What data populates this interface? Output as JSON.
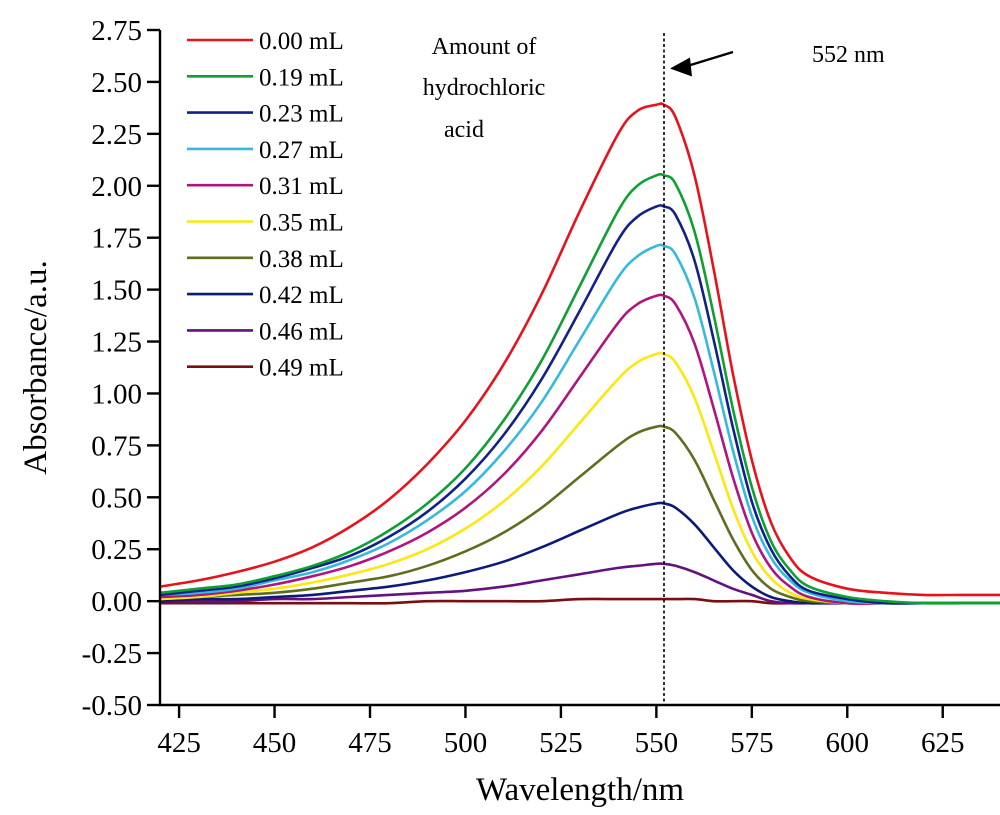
{
  "chart_data": {
    "type": "line",
    "title": "",
    "xlabel": "Wavelength/nm",
    "ylabel": "Absorbance/a.u.",
    "xlim": [
      420,
      640
    ],
    "ylim": [
      -0.5,
      2.75
    ],
    "xticks": [
      425,
      450,
      475,
      500,
      525,
      550,
      575,
      600,
      625
    ],
    "yticks": [
      -0.5,
      -0.25,
      0.0,
      0.25,
      0.5,
      0.75,
      1.0,
      1.25,
      1.5,
      1.75,
      2.0,
      2.25,
      2.5,
      2.75
    ],
    "ytick_labels": [
      "-0.50",
      "-0.25",
      "0.00",
      "0.25",
      "0.50",
      "0.75",
      "1.00",
      "1.25",
      "1.50",
      "1.75",
      "2.00",
      "2.25",
      "2.50",
      "2.75"
    ],
    "xtick_labels": [
      "425",
      "450",
      "475",
      "500",
      "525",
      "550",
      "575",
      "600",
      "625"
    ],
    "grid": false,
    "legend_title": "Amount of hydrochloric acid",
    "legend_title_lines": [
      "Amount of",
      "hydrochloric",
      "acid"
    ],
    "legend_position": "top-left",
    "annotations": [
      {
        "type": "vline",
        "x": 552,
        "style": "dotted"
      },
      {
        "type": "arrow",
        "text": "552 nm",
        "points_to_x": 552
      }
    ],
    "x": [
      420,
      430,
      440,
      450,
      460,
      470,
      480,
      490,
      500,
      510,
      520,
      530,
      540,
      545,
      550,
      552,
      555,
      560,
      565,
      570,
      575,
      580,
      585,
      590,
      600,
      610,
      620,
      630,
      640
    ],
    "series": [
      {
        "name": "0.00 mL",
        "color": "#e8121b",
        "values": [
          0.07,
          0.1,
          0.14,
          0.19,
          0.26,
          0.36,
          0.49,
          0.66,
          0.87,
          1.14,
          1.48,
          1.88,
          2.25,
          2.36,
          2.39,
          2.39,
          2.33,
          2.05,
          1.6,
          1.1,
          0.68,
          0.38,
          0.21,
          0.12,
          0.06,
          0.04,
          0.03,
          0.03,
          0.03
        ]
      },
      {
        "name": "0.19 mL",
        "color": "#0fa032",
        "values": [
          0.04,
          0.06,
          0.08,
          0.12,
          0.17,
          0.24,
          0.34,
          0.47,
          0.64,
          0.87,
          1.16,
          1.52,
          1.88,
          2.0,
          2.05,
          2.05,
          2.01,
          1.78,
          1.38,
          0.93,
          0.55,
          0.29,
          0.15,
          0.07,
          0.02,
          0.0,
          -0.01,
          -0.01,
          -0.01
        ]
      },
      {
        "name": "0.23 mL",
        "color": "#12218a",
        "values": [
          0.03,
          0.05,
          0.07,
          0.11,
          0.16,
          0.22,
          0.31,
          0.43,
          0.59,
          0.8,
          1.07,
          1.4,
          1.74,
          1.85,
          1.9,
          1.9,
          1.86,
          1.64,
          1.26,
          0.84,
          0.48,
          0.25,
          0.12,
          0.05,
          0.01,
          -0.01,
          -0.01,
          -0.01,
          -0.01
        ]
      },
      {
        "name": "0.27 mL",
        "color": "#35b9dc",
        "values": [
          0.03,
          0.04,
          0.06,
          0.1,
          0.14,
          0.2,
          0.28,
          0.39,
          0.53,
          0.72,
          0.96,
          1.26,
          1.56,
          1.66,
          1.71,
          1.71,
          1.67,
          1.46,
          1.11,
          0.73,
          0.41,
          0.21,
          0.1,
          0.04,
          0.0,
          -0.01,
          -0.01,
          -0.01,
          -0.01
        ]
      },
      {
        "name": "0.31 mL",
        "color": "#b0157f",
        "values": [
          0.02,
          0.03,
          0.05,
          0.08,
          0.12,
          0.17,
          0.24,
          0.33,
          0.45,
          0.61,
          0.82,
          1.08,
          1.34,
          1.43,
          1.47,
          1.47,
          1.43,
          1.24,
          0.93,
          0.6,
          0.33,
          0.16,
          0.07,
          0.02,
          -0.01,
          -0.01,
          -0.01,
          -0.01,
          -0.01
        ]
      },
      {
        "name": "0.35 mL",
        "color": "#fbe80e",
        "values": [
          0.01,
          0.02,
          0.04,
          0.06,
          0.09,
          0.13,
          0.18,
          0.25,
          0.35,
          0.48,
          0.65,
          0.86,
          1.07,
          1.15,
          1.19,
          1.19,
          1.15,
          0.98,
          0.72,
          0.45,
          0.24,
          0.11,
          0.04,
          0.01,
          -0.01,
          -0.01,
          -0.01,
          -0.01,
          -0.01
        ]
      },
      {
        "name": "0.38 mL",
        "color": "#5e6e1e",
        "values": [
          0.01,
          0.02,
          0.03,
          0.04,
          0.06,
          0.09,
          0.12,
          0.17,
          0.24,
          0.33,
          0.45,
          0.6,
          0.75,
          0.81,
          0.84,
          0.84,
          0.81,
          0.68,
          0.49,
          0.3,
          0.15,
          0.06,
          0.02,
          0.0,
          -0.01,
          -0.01,
          -0.01,
          -0.01,
          -0.01
        ]
      },
      {
        "name": "0.42 mL",
        "color": "#0c1a78",
        "values": [
          0.0,
          0.01,
          0.01,
          0.02,
          0.03,
          0.05,
          0.07,
          0.1,
          0.14,
          0.19,
          0.26,
          0.34,
          0.42,
          0.45,
          0.47,
          0.47,
          0.45,
          0.37,
          0.26,
          0.15,
          0.07,
          0.02,
          0.0,
          -0.01,
          -0.01,
          -0.01,
          -0.01,
          -0.01,
          -0.01
        ]
      },
      {
        "name": "0.46 mL",
        "color": "#65117f",
        "values": [
          0.0,
          0.0,
          0.0,
          0.01,
          0.01,
          0.02,
          0.03,
          0.04,
          0.05,
          0.07,
          0.1,
          0.13,
          0.16,
          0.17,
          0.18,
          0.18,
          0.17,
          0.14,
          0.1,
          0.06,
          0.03,
          0.0,
          -0.01,
          -0.01,
          -0.01,
          -0.01,
          -0.01,
          -0.01,
          -0.01
        ]
      },
      {
        "name": "0.49 mL",
        "color": "#7a0f12",
        "values": [
          -0.01,
          -0.01,
          -0.01,
          -0.01,
          -0.01,
          -0.01,
          -0.01,
          0.0,
          0.0,
          0.0,
          0.0,
          0.01,
          0.01,
          0.01,
          0.01,
          0.01,
          0.01,
          0.01,
          0.0,
          0.0,
          0.0,
          -0.01,
          -0.01,
          -0.01,
          -0.01,
          -0.01,
          -0.01,
          -0.01,
          -0.01
        ]
      }
    ]
  }
}
